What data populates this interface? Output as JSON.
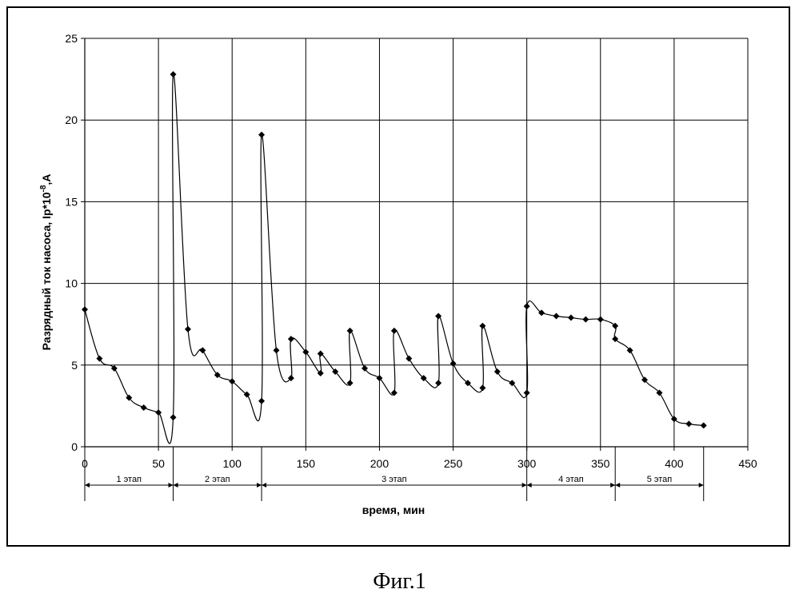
{
  "chart_data": {
    "type": "line",
    "xlabel": "время, мин",
    "ylabel": "Разрядный ток насоса, Ip*10",
    "ylabel_exp": "-8",
    "ylabel_unit": ",A",
    "xlim": [
      0,
      450
    ],
    "ylim": [
      0,
      25
    ],
    "xticks": [
      0,
      50,
      100,
      150,
      200,
      250,
      300,
      350,
      400,
      450
    ],
    "yticks": [
      0,
      5,
      10,
      15,
      20,
      25
    ],
    "xtick_labels": [
      "0",
      "50",
      "100",
      "150",
      "200",
      "250",
      "300",
      "350",
      "400",
      "450"
    ],
    "ytick_labels": [
      "0",
      "5",
      "10",
      "15",
      "20",
      "25"
    ],
    "grid": true,
    "series": [
      {
        "marker": "diamond",
        "points": [
          [
            0,
            8.4
          ],
          [
            10,
            5.4
          ],
          [
            20,
            4.8
          ],
          [
            30,
            3.0
          ],
          [
            40,
            2.4
          ],
          [
            50,
            2.1
          ],
          [
            60,
            1.8
          ],
          [
            60,
            22.8
          ],
          [
            70,
            7.2
          ],
          [
            80,
            5.9
          ],
          [
            90,
            4.4
          ],
          [
            100,
            4.0
          ],
          [
            110,
            3.2
          ],
          [
            120,
            2.8
          ],
          [
            120,
            19.1
          ],
          [
            130,
            5.9
          ],
          [
            140,
            4.2
          ],
          [
            140,
            6.6
          ],
          [
            150,
            5.8
          ],
          [
            160,
            4.5
          ],
          [
            160,
            5.7
          ],
          [
            170,
            4.6
          ],
          [
            180,
            3.9
          ],
          [
            180,
            7.1
          ],
          [
            190,
            4.8
          ],
          [
            200,
            4.2
          ],
          [
            210,
            3.3
          ],
          [
            210,
            7.1
          ],
          [
            220,
            5.4
          ],
          [
            230,
            4.2
          ],
          [
            240,
            3.9
          ],
          [
            240,
            8.0
          ],
          [
            250,
            5.1
          ],
          [
            260,
            3.9
          ],
          [
            270,
            3.6
          ],
          [
            270,
            7.4
          ],
          [
            280,
            4.6
          ],
          [
            290,
            3.9
          ],
          [
            300,
            3.3
          ],
          [
            300,
            8.6
          ],
          [
            310,
            8.2
          ],
          [
            320,
            8.0
          ],
          [
            330,
            7.9
          ],
          [
            340,
            7.8
          ],
          [
            350,
            7.8
          ],
          [
            360,
            7.4
          ],
          [
            360,
            6.6
          ],
          [
            370,
            5.9
          ],
          [
            380,
            4.1
          ],
          [
            390,
            3.3
          ],
          [
            400,
            1.7
          ],
          [
            410,
            1.4
          ],
          [
            420,
            1.3
          ]
        ]
      }
    ],
    "stages": [
      {
        "label": "1 этап",
        "start": 0,
        "end": 60
      },
      {
        "label": "2 этап",
        "start": 60,
        "end": 120
      },
      {
        "label": "3 этап",
        "start": 120,
        "end": 300
      },
      {
        "label": "4 этап",
        "start": 300,
        "end": 360
      },
      {
        "label": "5 этап",
        "start": 360,
        "end": 420
      }
    ]
  },
  "caption": "Фиг.1",
  "colors": {
    "line": "#000000",
    "grid": "#000000",
    "marker": "#000000"
  }
}
